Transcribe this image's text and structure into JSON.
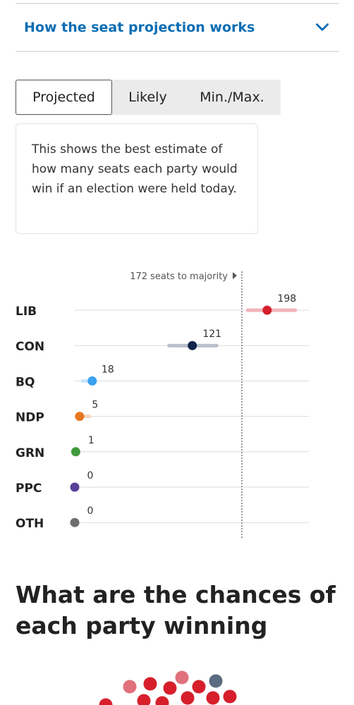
{
  "accordion": {
    "title": "How the seat projection works",
    "icon": "chevron-down-icon"
  },
  "tabs": [
    {
      "label": "Projected",
      "active": true
    },
    {
      "label": "Likely",
      "active": false
    },
    {
      "label": "Min./Max.",
      "active": false
    }
  ],
  "description": "This shows the best estimate of how many seats each party would win if an election were held today.",
  "colors": {
    "lib": "#d71f2c",
    "lib_range": "#f0b5b9",
    "con": "#10254a",
    "con_range": "#b8c0cb",
    "bq": "#3aa0f0",
    "bq_range": "#cbe4f8",
    "ndp": "#e87721",
    "ndp_range": "#f6d5bb",
    "grn": "#3f9b3b",
    "ppc": "#5a3f98",
    "oth": "#6e6e6e",
    "accent": "#0b6db3"
  },
  "chart_data": {
    "type": "scatter",
    "majority_label": "172 seats to majority",
    "majority": 172,
    "xlim": [
      0,
      180
    ],
    "grid": false,
    "parties": [
      {
        "code": "LIB",
        "seats": 198,
        "range": [
          178,
          227
        ],
        "colorKey": "lib",
        "rangeColorKey": "lib_range"
      },
      {
        "code": "CON",
        "seats": 121,
        "range": [
          97,
          146
        ],
        "colorKey": "con",
        "rangeColorKey": "con_range"
      },
      {
        "code": "BQ",
        "seats": 18,
        "range": [
          8,
          20
        ],
        "colorKey": "bq",
        "rangeColorKey": "bq_range"
      },
      {
        "code": "NDP",
        "seats": 5,
        "range": [
          2,
          15
        ],
        "colorKey": "ndp",
        "rangeColorKey": "ndp_range"
      },
      {
        "code": "GRN",
        "seats": 1,
        "range": [
          1,
          1
        ],
        "colorKey": "grn",
        "rangeColorKey": "grn"
      },
      {
        "code": "PPC",
        "seats": 0,
        "range": [
          0,
          0
        ],
        "colorKey": "ppc",
        "rangeColorKey": "ppc"
      },
      {
        "code": "OTH",
        "seats": 0,
        "range": [
          0,
          0
        ],
        "colorKey": "oth",
        "rangeColorKey": "oth"
      }
    ]
  },
  "chances_heading": "What are the chances of each party winning"
}
